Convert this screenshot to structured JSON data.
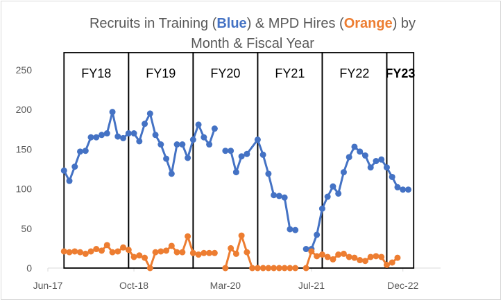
{
  "chart_data": {
    "type": "line",
    "title": {
      "parts": [
        {
          "text": "Recruits in Training (",
          "color": "#595959",
          "bold": false
        },
        {
          "text": "Blue",
          "color": "#4472C4",
          "bold": true
        },
        {
          "text": ") & MPD Hires (",
          "color": "#595959",
          "bold": false
        },
        {
          "text": "Orange",
          "color": "#ED7D31",
          "bold": true
        },
        {
          "text": ") by",
          "color": "#595959",
          "bold": false
        }
      ],
      "line2": "Month & Fiscal Year"
    },
    "ylim": [
      0,
      250
    ],
    "yticks": [
      0,
      50,
      100,
      150,
      200,
      250
    ],
    "xlim": [
      "2017-06",
      "2023-07"
    ],
    "xticks": [
      {
        "label": "Jun-17",
        "date": "2017-06"
      },
      {
        "label": "Oct-18",
        "date": "2018-10"
      },
      {
        "label": "Mar-20",
        "date": "2020-03"
      },
      {
        "label": "Jul-21",
        "date": "2021-07"
      },
      {
        "label": "Dec-22",
        "date": "2022-12"
      }
    ],
    "fiscal_years": [
      {
        "label": "FY18",
        "start": "2017-09",
        "end": "2018-09",
        "color": "#000000",
        "bold": false
      },
      {
        "label": "FY19",
        "start": "2018-09",
        "end": "2019-09",
        "color": "#000000",
        "bold": false
      },
      {
        "label": "FY20",
        "start": "2019-09",
        "end": "2020-09",
        "color": "#000000",
        "bold": false
      },
      {
        "label": "FY21",
        "start": "2020-09",
        "end": "2021-09",
        "color": "#000000",
        "bold": false
      },
      {
        "label": "FY22",
        "start": "2021-09",
        "end": "2022-09",
        "color": "#000000",
        "bold": false
      },
      {
        "label": "FY23",
        "start": "2022-09",
        "end": "2023-02",
        "color": "#E00000",
        "bold": true
      }
    ],
    "series": [
      {
        "color": "#4472C4",
        "points": [
          [
            "2017-09",
            123
          ],
          [
            "2017-10",
            110
          ],
          [
            "2017-11",
            128
          ],
          [
            "2017-12",
            147
          ],
          [
            "2018-01",
            148
          ],
          [
            "2018-02",
            165
          ],
          [
            "2018-03",
            165
          ],
          [
            "2018-04",
            168
          ],
          [
            "2018-05",
            170
          ],
          [
            "2018-06",
            197
          ],
          [
            "2018-07",
            166
          ],
          [
            "2018-08",
            164
          ],
          [
            "2018-09",
            170
          ],
          [
            "2018-10",
            170
          ],
          [
            "2018-11",
            160
          ],
          [
            "2018-12",
            182
          ],
          [
            "2019-01",
            195
          ],
          [
            "2019-02",
            168
          ],
          [
            "2019-03",
            156
          ],
          [
            "2019-04",
            138
          ],
          [
            "2019-05",
            119
          ],
          [
            "2019-06",
            156
          ],
          [
            "2019-07",
            156
          ],
          [
            "2019-08",
            139
          ],
          [
            "2019-09",
            162
          ],
          [
            "2019-10",
            181
          ],
          [
            "2019-11",
            165
          ],
          [
            "2019-12",
            156
          ],
          [
            "2020-01",
            176
          ],
          null,
          [
            "2020-03",
            148
          ],
          [
            "2020-04",
            148
          ],
          [
            "2020-05",
            121
          ],
          [
            "2020-06",
            141
          ],
          [
            "2020-07",
            144
          ],
          [
            "2020-09",
            162
          ],
          [
            "2020-10",
            143
          ],
          [
            "2020-11",
            119
          ],
          [
            "2020-12",
            92
          ],
          [
            "2021-01",
            91
          ],
          [
            "2021-02",
            89
          ],
          [
            "2021-03",
            49
          ],
          [
            "2021-04",
            48
          ],
          null,
          [
            "2021-06",
            24
          ],
          [
            "2021-07",
            24
          ],
          [
            "2021-08",
            42
          ],
          [
            "2021-09",
            75
          ],
          [
            "2021-10",
            90
          ],
          [
            "2021-11",
            103
          ],
          [
            "2021-12",
            94
          ],
          [
            "2022-01",
            121
          ],
          [
            "2022-02",
            140
          ],
          [
            "2022-03",
            153
          ],
          [
            "2022-04",
            147
          ],
          [
            "2022-05",
            142
          ],
          [
            "2022-06",
            127
          ],
          [
            "2022-07",
            135
          ],
          [
            "2022-08",
            137
          ],
          [
            "2022-09",
            127
          ],
          [
            "2022-10",
            115
          ],
          [
            "2022-11",
            102
          ],
          [
            "2022-12",
            99
          ],
          [
            "2023-01",
            99
          ]
        ]
      },
      {
        "color": "#ED7D31",
        "points": [
          [
            "2017-09",
            21
          ],
          [
            "2017-10",
            20
          ],
          [
            "2017-11",
            21
          ],
          [
            "2017-12",
            20
          ],
          [
            "2018-01",
            18
          ],
          [
            "2018-02",
            21
          ],
          [
            "2018-03",
            24
          ],
          [
            "2018-04",
            22
          ],
          [
            "2018-05",
            29
          ],
          [
            "2018-06",
            20
          ],
          [
            "2018-07",
            21
          ],
          [
            "2018-08",
            26
          ],
          [
            "2018-09",
            23
          ],
          [
            "2018-10",
            14
          ],
          [
            "2018-11",
            16
          ],
          [
            "2018-12",
            13
          ],
          [
            "2019-01",
            0
          ],
          [
            "2019-02",
            20
          ],
          [
            "2019-03",
            21
          ],
          [
            "2019-04",
            22
          ],
          [
            "2019-05",
            28
          ],
          [
            "2019-06",
            20
          ],
          [
            "2019-07",
            20
          ],
          [
            "2019-08",
            40
          ],
          [
            "2019-09",
            19
          ],
          [
            "2019-10",
            17
          ],
          [
            "2019-11",
            19
          ],
          [
            "2019-12",
            19
          ],
          [
            "2020-01",
            19
          ],
          null,
          [
            "2020-03",
            0
          ],
          [
            "2020-04",
            25
          ],
          [
            "2020-05",
            18
          ],
          [
            "2020-06",
            41
          ],
          [
            "2020-07",
            20
          ],
          [
            "2020-08",
            0
          ],
          [
            "2020-09",
            0
          ],
          [
            "2020-10",
            0
          ],
          [
            "2020-11",
            0
          ],
          [
            "2020-12",
            0
          ],
          [
            "2021-01",
            0
          ],
          [
            "2021-02",
            0
          ],
          [
            "2021-03",
            0
          ],
          [
            "2021-04",
            0
          ],
          null,
          [
            "2021-06",
            0
          ],
          [
            "2021-07",
            21
          ],
          [
            "2021-08",
            15
          ],
          [
            "2021-09",
            17
          ],
          [
            "2021-10",
            14
          ],
          [
            "2021-11",
            11
          ],
          [
            "2021-12",
            17
          ],
          [
            "2022-01",
            18
          ],
          [
            "2022-02",
            14
          ],
          [
            "2022-03",
            13
          ],
          [
            "2022-04",
            10
          ],
          [
            "2022-05",
            9
          ],
          [
            "2022-06",
            14
          ],
          [
            "2022-07",
            15
          ],
          [
            "2022-08",
            14
          ],
          [
            "2022-09",
            4
          ],
          [
            "2022-10",
            7
          ],
          [
            "2022-11",
            13
          ]
        ]
      }
    ],
    "grid": false,
    "legend": "none"
  }
}
